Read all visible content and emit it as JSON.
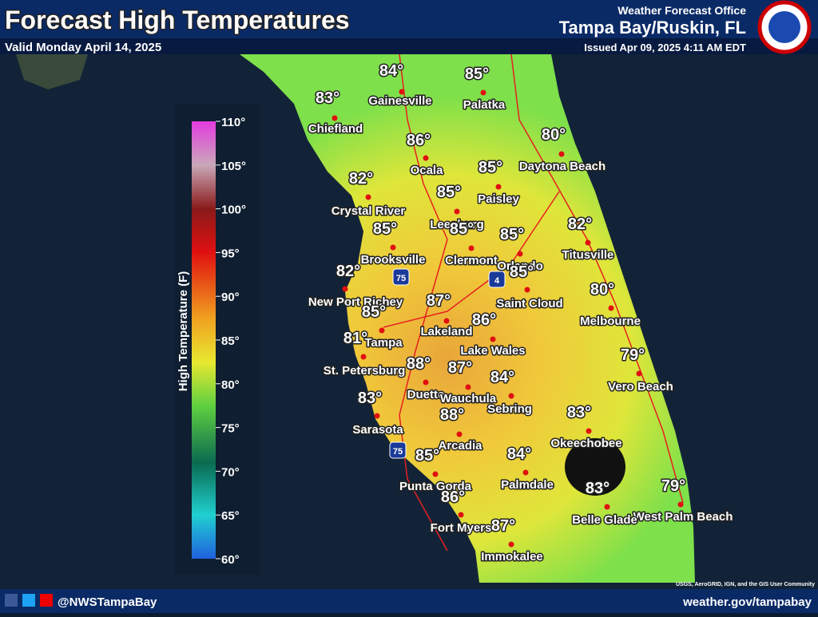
{
  "header": {
    "title": "Forecast High Temperatures",
    "valid": "Valid Monday April 14, 2025",
    "office": "Weather Forecast Office",
    "location": "Tampa Bay/Ruskin, FL",
    "issued": "Issued Apr 09, 2025 4:11 AM EDT"
  },
  "legend": {
    "label": "High Temperature (F)",
    "ticks": [
      "110°",
      "105°",
      "100°",
      "95°",
      "90°",
      "85°",
      "80°",
      "75°",
      "70°",
      "65°",
      "60°"
    ]
  },
  "cities": [
    {
      "name": "Gainesville",
      "temp": "84°"
    },
    {
      "name": "Palatka",
      "temp": "85°"
    },
    {
      "name": "Chiefland",
      "temp": "83°"
    },
    {
      "name": "Ocala",
      "temp": "86°"
    },
    {
      "name": "Daytona Beach",
      "temp": "80°"
    },
    {
      "name": "Paisley",
      "temp": "85°"
    },
    {
      "name": "Crystal River",
      "temp": "82°"
    },
    {
      "name": "Leesburg",
      "temp": "85°"
    },
    {
      "name": "Clermont",
      "temp": "85°"
    },
    {
      "name": "Brooksville",
      "temp": "85°"
    },
    {
      "name": "Orlando",
      "temp": "85°"
    },
    {
      "name": "Titusville",
      "temp": "82°"
    },
    {
      "name": "New Port Richey",
      "temp": "82°"
    },
    {
      "name": "Saint Cloud",
      "temp": "85°"
    },
    {
      "name": "Melbourne",
      "temp": "80°"
    },
    {
      "name": "Lakeland",
      "temp": "87°"
    },
    {
      "name": "Tampa",
      "temp": "85°"
    },
    {
      "name": "Lake Wales",
      "temp": "86°"
    },
    {
      "name": "St. Petersburg",
      "temp": "81°"
    },
    {
      "name": "Vero Beach",
      "temp": "79°"
    },
    {
      "name": "Duette",
      "temp": "88°"
    },
    {
      "name": "Wauchula",
      "temp": "87°"
    },
    {
      "name": "Sebring",
      "temp": "84°"
    },
    {
      "name": "Sarasota",
      "temp": "83°"
    },
    {
      "name": "Okeechobee",
      "temp": "83°"
    },
    {
      "name": "Arcadia",
      "temp": "88°"
    },
    {
      "name": "Punta Gorda",
      "temp": "85°"
    },
    {
      "name": "Palmdale",
      "temp": "84°"
    },
    {
      "name": "West Palm Beach",
      "temp": "79°"
    },
    {
      "name": "Belle Glade",
      "temp": "83°"
    },
    {
      "name": "Fort Myers",
      "temp": "86°"
    },
    {
      "name": "Immokalee",
      "temp": "87°"
    }
  ],
  "shields": [
    "75",
    "4",
    "75"
  ],
  "attribution": "USGS, AeroGRID, IGN, and the GIS User Community",
  "footer": {
    "social": "@NWSTampaBay",
    "website": "weather.gov/tampabay"
  }
}
